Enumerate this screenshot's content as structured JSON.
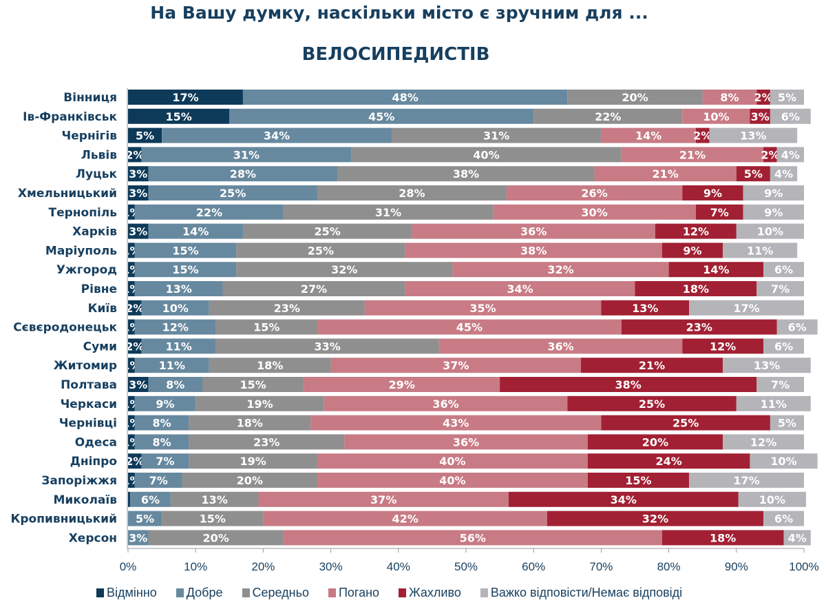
{
  "chart_data": {
    "type": "bar",
    "orientation": "horizontal",
    "stacked": true,
    "title": "На Вашу думку, наскільки місто є зручним для ...",
    "subtitle": "ВЕЛОСИПЕДИСТІВ",
    "xlabel": "",
    "ylabel": "",
    "xlim": [
      0,
      100
    ],
    "x_ticks": [
      "0%",
      "10%",
      "20%",
      "30%",
      "40%",
      "50%",
      "60%",
      "70%",
      "80%",
      "90%",
      "100%"
    ],
    "grid": false,
    "legend_position": "bottom",
    "categories": [
      "Вінниця",
      "Ів-Франківськ",
      "Чернігів",
      "Львів",
      "Луцьк",
      "Хмельницький",
      "Тернопіль",
      "Харків",
      "Маріуполь",
      "Ужгород",
      "Рівне",
      "Київ",
      "Сєвєродонецьк",
      "Суми",
      "Житомир",
      "Полтава",
      "Черкаси",
      "Чернівці",
      "Одеса",
      "Дніпро",
      "Запоріжжя",
      "Миколаїв",
      "Кропивницький",
      "Херсон"
    ],
    "series": [
      {
        "name": "Відмінно",
        "color": "#0e3a59",
        "values": [
          17,
          15,
          5,
          2,
          3,
          3,
          1,
          3,
          1,
          1,
          1,
          2,
          1,
          2,
          1,
          3,
          1,
          1,
          1,
          2,
          1,
          0.3,
          0,
          0
        ]
      },
      {
        "name": "Добре",
        "color": "#67899f",
        "values": [
          48,
          45,
          34,
          31,
          28,
          25,
          22,
          14,
          15,
          15,
          13,
          10,
          12,
          11,
          11,
          8,
          9,
          8,
          8,
          7,
          7,
          6,
          5,
          3
        ]
      },
      {
        "name": "Середньо",
        "color": "#8f8f8f",
        "values": [
          20,
          22,
          31,
          40,
          38,
          28,
          31,
          25,
          25,
          32,
          27,
          23,
          15,
          33,
          18,
          15,
          19,
          18,
          23,
          19,
          20,
          13,
          15,
          20
        ]
      },
      {
        "name": "Погано",
        "color": "#c87b85",
        "values": [
          8,
          10,
          14,
          21,
          21,
          26,
          30,
          36,
          38,
          32,
          34,
          35,
          45,
          36,
          37,
          29,
          36,
          43,
          36,
          40,
          40,
          37,
          42,
          56
        ]
      },
      {
        "name": "Жахливо",
        "color": "#a22033",
        "values": [
          2,
          3,
          2,
          2,
          5,
          9,
          7,
          12,
          9,
          14,
          18,
          13,
          23,
          12,
          21,
          38,
          25,
          25,
          20,
          24,
          15,
          34,
          32,
          18
        ]
      },
      {
        "name": "Важко відповісти/Немає відповіді",
        "color": "#b4b4b9",
        "values": [
          5,
          6,
          13,
          4,
          4,
          9,
          9,
          10,
          11,
          6,
          7,
          17,
          6,
          6,
          13,
          7,
          11,
          5,
          12,
          10,
          17,
          10,
          6,
          4
        ]
      }
    ]
  }
}
